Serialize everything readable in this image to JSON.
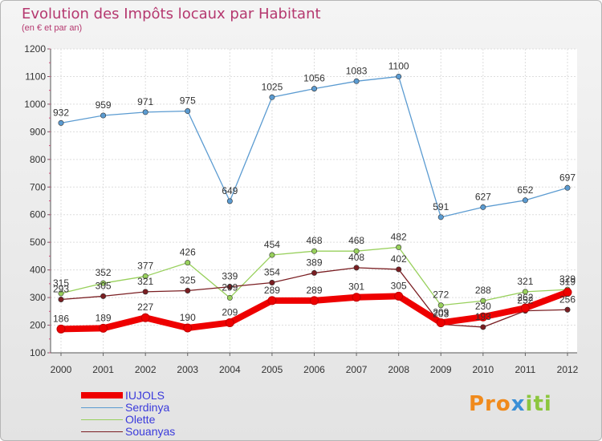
{
  "chart_data": {
    "type": "line",
    "title": "Evolution des Impôts locaux par Habitant",
    "subtitle": "(en € et par an)",
    "categories": [
      "2000",
      "2001",
      "2002",
      "2003",
      "2004",
      "2005",
      "2006",
      "2007",
      "2008",
      "2009",
      "2010",
      "2011",
      "2012"
    ],
    "ylim": [
      100,
      1200
    ],
    "yticks": [
      100,
      200,
      300,
      400,
      500,
      600,
      700,
      800,
      900,
      1000,
      1100,
      1200
    ],
    "series": [
      {
        "name": "IUJOLS",
        "color": "#ee0000",
        "values": [
          186,
          189,
          227,
          190,
          209,
          289,
          289,
          301,
          305,
          209,
          230,
          262,
          319
        ]
      },
      {
        "name": "Serdinya",
        "color": "#5b9bd1",
        "values": [
          932,
          959,
          971,
          975,
          649,
          1025,
          1056,
          1083,
          1100,
          591,
          627,
          652,
          697
        ]
      },
      {
        "name": "Olette",
        "color": "#98d05c",
        "values": [
          315,
          352,
          377,
          426,
          299,
          454,
          468,
          468,
          482,
          272,
          288,
          321,
          329
        ]
      },
      {
        "name": "Souanyas",
        "color": "#7a1e22",
        "values": [
          293,
          305,
          321,
          325,
          339,
          354,
          389,
          408,
          402,
          203,
          193,
          252,
          256
        ]
      }
    ]
  },
  "branding": {
    "logo_parts": [
      "Pro",
      "x",
      "iti"
    ]
  }
}
